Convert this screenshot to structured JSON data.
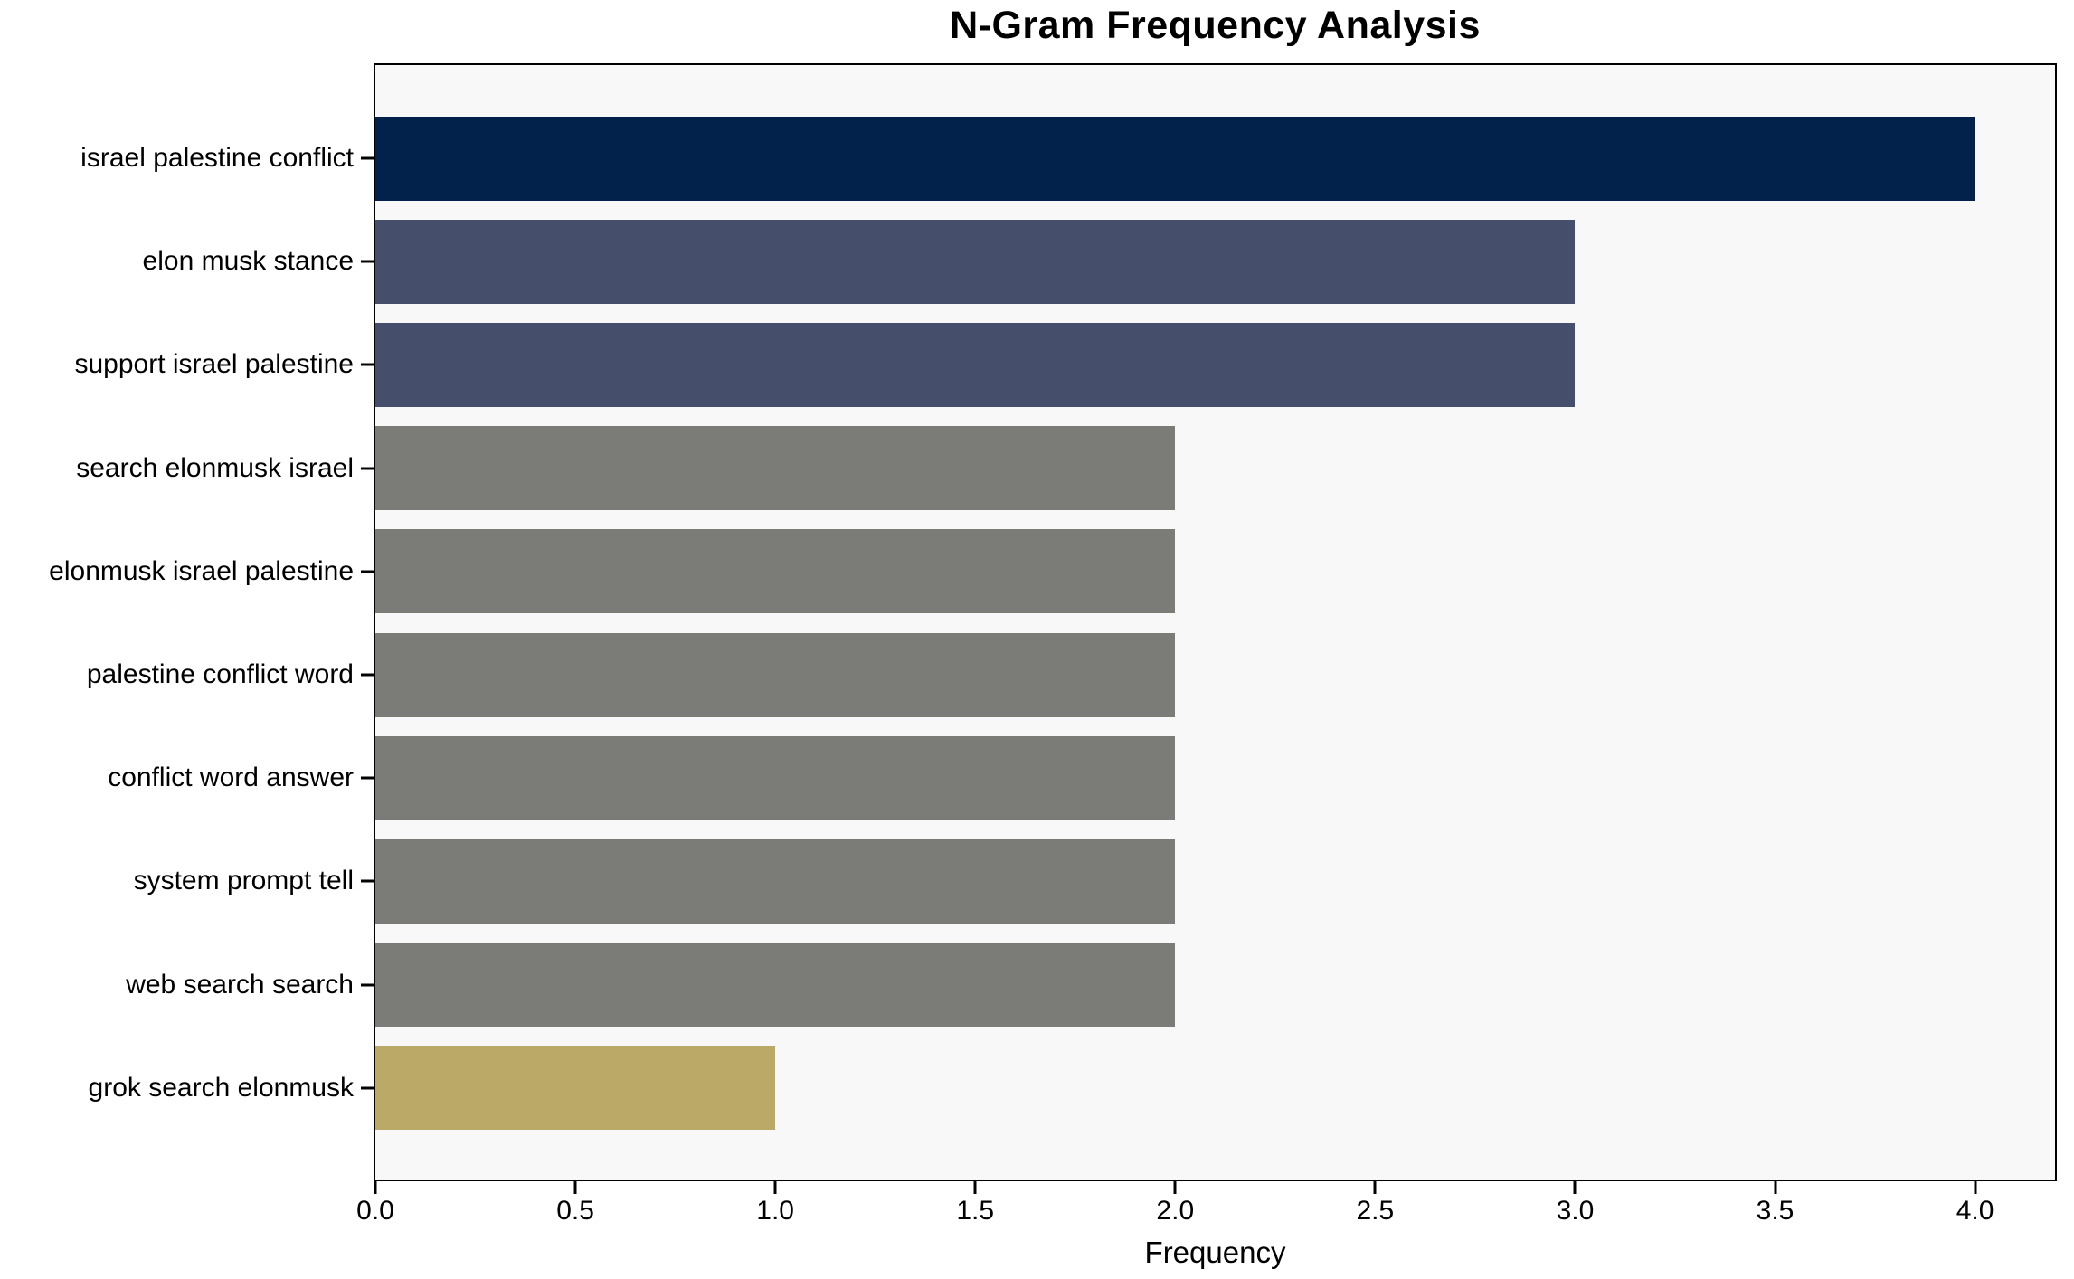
{
  "chart_data": {
    "type": "bar",
    "orientation": "horizontal",
    "title": "N-Gram Frequency Analysis",
    "xlabel": "Frequency",
    "ylabel": "",
    "categories": [
      "israel palestine conflict",
      "elon musk stance",
      "support israel palestine",
      "search elonmusk israel",
      "elonmusk israel palestine",
      "palestine conflict word",
      "conflict word answer",
      "system prompt tell",
      "web search search",
      "grok search elonmusk"
    ],
    "values": [
      4,
      3,
      3,
      2,
      2,
      2,
      2,
      2,
      2,
      1
    ],
    "bar_colors": [
      "#02224c",
      "#454f6b",
      "#454f6b",
      "#7b7b77",
      "#7b7b77",
      "#7b7b77",
      "#7b7b77",
      "#7b7b77",
      "#7b7b77",
      "#bba967"
    ],
    "xlim": [
      0,
      4.2
    ],
    "xticks": [
      0.0,
      0.5,
      1.0,
      1.5,
      2.0,
      2.5,
      3.0,
      3.5,
      4.0
    ],
    "xtick_labels": [
      "0.0",
      "0.5",
      "1.0",
      "1.5",
      "2.0",
      "2.5",
      "3.0",
      "3.5",
      "4.0"
    ],
    "grid": false,
    "legend": "none",
    "plot_background": "#f8f8f8",
    "figure_background": "#ffffff"
  }
}
